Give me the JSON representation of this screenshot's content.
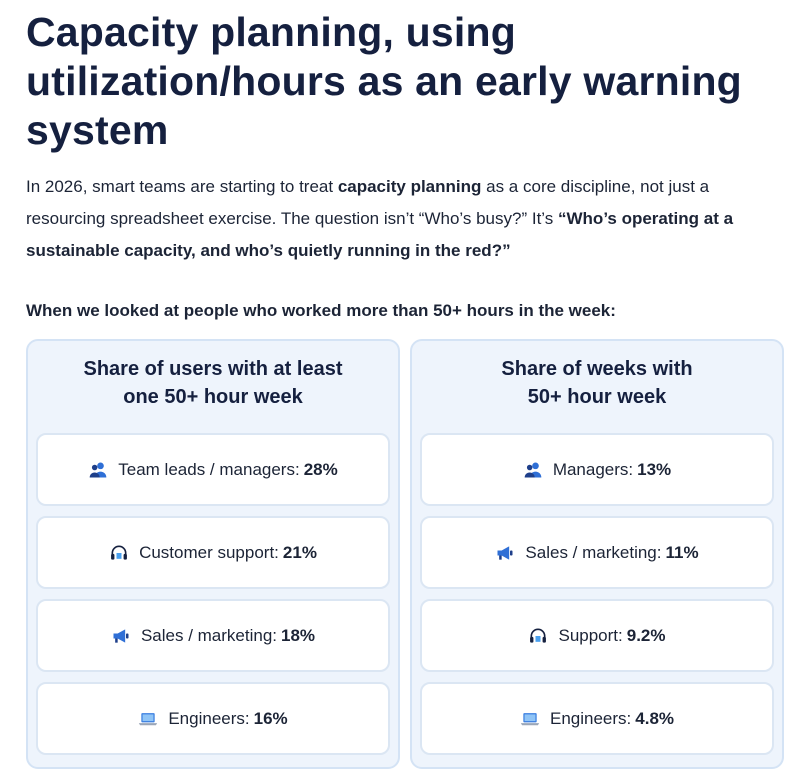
{
  "heading": "Capacity planning, using utilization/hours as an early warning system",
  "intro": {
    "p1": "In 2026, smart teams are starting to treat ",
    "b1": "capacity planning",
    "p2": " as a core discipline, not just a resourcing spreadsheet exercise. The question isn’t “Who’s busy?” It’s ",
    "b2": "“Who’s operating at a sustainable capacity, and who’s quietly running in the red?”"
  },
  "lead": "When we looked at people who worked more than 50+ hours in the week:",
  "columns": [
    {
      "title_line1": "Share of users with at least",
      "title_line2": "one 50+ hour week",
      "items": [
        {
          "icon": "people-icon",
          "label": "Team leads / managers:",
          "value": "28%"
        },
        {
          "icon": "headset-icon",
          "label": "Customer support:",
          "value": "21%"
        },
        {
          "icon": "megaphone-icon",
          "label": "Sales / marketing:",
          "value": "18%"
        },
        {
          "icon": "laptop-icon",
          "label": "Engineers:",
          "value": "16%"
        }
      ]
    },
    {
      "title_line1": "Share of weeks with",
      "title_line2": "50+ hour week",
      "items": [
        {
          "icon": "people-icon",
          "label": "Managers:",
          "value": "13%"
        },
        {
          "icon": "megaphone-icon",
          "label": "Sales / marketing:",
          "value": "11%"
        },
        {
          "icon": "headset-icon",
          "label": "Support:",
          "value": "9.2%"
        },
        {
          "icon": "laptop-icon",
          "label": "Engineers:",
          "value": "4.8%"
        }
      ]
    }
  ],
  "colors": {
    "heading": "#15203f",
    "panel_bg": "#eef4fc",
    "panel_border": "#d4e3f5",
    "icon_blue": "#2f6fd6"
  }
}
